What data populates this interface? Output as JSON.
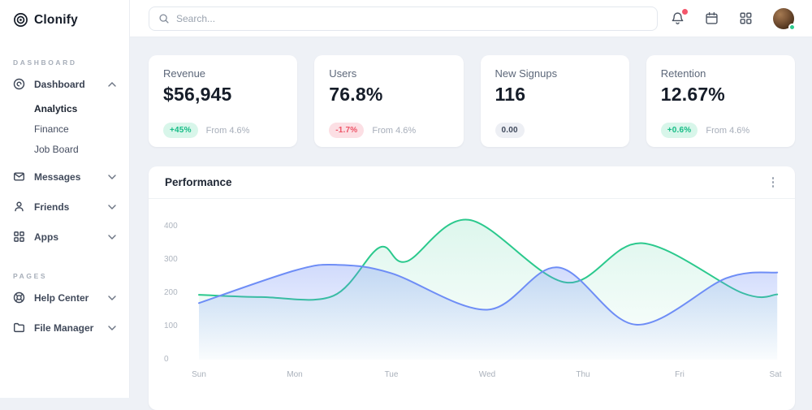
{
  "brand": {
    "name": "Clonify",
    "logo_icon": "target-rings-icon"
  },
  "topbar": {
    "search_placeholder": "Search...",
    "icons": [
      "bell-icon",
      "calendar-icon",
      "apps-grid-icon",
      "avatar"
    ],
    "has_notification": true,
    "status_color": "#2ecb8e",
    "notification_color": "#f4566b"
  },
  "sidebar": {
    "sections": [
      {
        "label": "DASHBOARD",
        "items": [
          {
            "label": "Dashboard",
            "icon": "disc-icon",
            "expanded": true
          },
          {
            "label": "Messages",
            "icon": "mail-icon",
            "expanded": false
          },
          {
            "label": "Friends",
            "icon": "user-icon",
            "expanded": false
          },
          {
            "label": "Apps",
            "icon": "grid-icon",
            "expanded": false
          }
        ]
      },
      {
        "label": "PAGES",
        "items": [
          {
            "label": "Help Center",
            "icon": "lifebuoy-icon",
            "expanded": false
          },
          {
            "label": "File Manager",
            "icon": "folder-icon",
            "expanded": false
          }
        ]
      }
    ],
    "submenu": {
      "items": [
        {
          "label": "Analytics",
          "active": true
        },
        {
          "label": "Finance",
          "active": false
        },
        {
          "label": "Job Board",
          "active": false
        }
      ]
    }
  },
  "stats": [
    {
      "label": "Revenue",
      "value": "$56,945",
      "badge": "+45%",
      "badge_type": "positive",
      "note": "From 4.6%"
    },
    {
      "label": "Users",
      "value": "76.8%",
      "badge": "-1.7%",
      "badge_type": "negative",
      "note": "From 4.6%"
    },
    {
      "label": "New Signups",
      "value": "116",
      "badge": "0.00",
      "badge_type": "neutral",
      "note": ""
    },
    {
      "label": "Retention",
      "value": "12.67%",
      "badge": "+0.6%",
      "badge_type": "positive",
      "note": "From 4.6%"
    }
  ],
  "chart_data": {
    "type": "area",
    "title": "Performance",
    "categories": [
      "Sun",
      "Mon",
      "Tue",
      "Wed",
      "Thu",
      "Fri",
      "Sat"
    ],
    "yticks": [
      0,
      100,
      200,
      300,
      400
    ],
    "ylim": [
      0,
      440
    ],
    "grid": false,
    "legend": "none",
    "series": [
      {
        "name": "series-green",
        "color": "#2bc98d",
        "fill_from": "rgba(43,201,141,0.16)",
        "fill_to": "rgba(43,201,141,0.01)",
        "points": [
          [
            0,
            195
          ],
          [
            0.65,
            188
          ],
          [
            1.4,
            192
          ],
          [
            1.88,
            337
          ],
          [
            2.16,
            295
          ],
          [
            2.81,
            420
          ],
          [
            3.82,
            232
          ],
          [
            4.61,
            350
          ],
          [
            5.66,
            200
          ],
          [
            6.02,
            196
          ]
        ]
      },
      {
        "name": "series-blue",
        "color": "#6e8df6",
        "fill_from": "rgba(110,141,246,0.32)",
        "fill_to": "rgba(110,141,246,0.02)",
        "points": [
          [
            0,
            170
          ],
          [
            1.0,
            268
          ],
          [
            1.44,
            285
          ],
          [
            2.0,
            260
          ],
          [
            3.0,
            150
          ],
          [
            3.74,
            277
          ],
          [
            4.55,
            105
          ],
          [
            5.49,
            245
          ],
          [
            6.02,
            262
          ]
        ]
      }
    ]
  }
}
